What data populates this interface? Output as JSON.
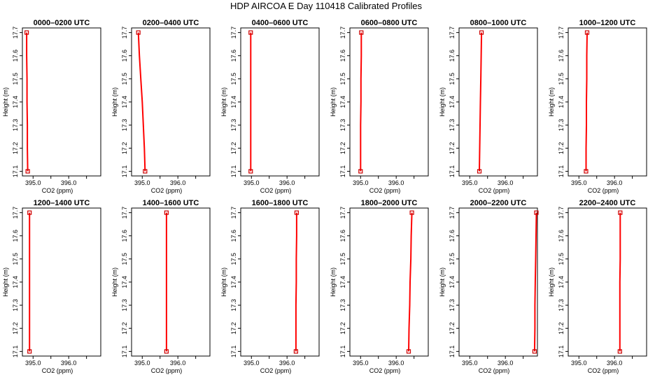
{
  "figure": {
    "title": "HDP AIRCOA E  Day 110418  Calibrated Profiles"
  },
  "colors": {
    "series": "#ff0000",
    "marker": "#cc0000",
    "axis": "#000000"
  },
  "chart_data": [
    {
      "type": "line",
      "title": "0000–0200 UTC",
      "xlabel": "CO2 (ppm)",
      "ylabel": "Height (m)",
      "xlim": [
        394.7,
        396.9
      ],
      "ylim": [
        17.08,
        17.72
      ],
      "xticks": [
        "395.0",
        "396.0"
      ],
      "yticks": [
        "17.1",
        "17.2",
        "17.3",
        "17.4",
        "17.5",
        "17.6",
        "17.7"
      ],
      "grid": false,
      "series": [
        {
          "x": [
            394.85,
            394.84,
            394.84,
            394.83,
            394.83,
            394.82,
            394.82
          ],
          "y": [
            17.1,
            17.2,
            17.3,
            17.4,
            17.5,
            17.6,
            17.7
          ],
          "markers": [
            {
              "x": 394.85,
              "y": 17.1
            },
            {
              "x": 394.82,
              "y": 17.7
            }
          ]
        }
      ]
    },
    {
      "type": "line",
      "title": "0200–0400 UTC",
      "xlabel": "CO2 (ppm)",
      "ylabel": "Height (m)",
      "xlim": [
        394.7,
        396.9
      ],
      "ylim": [
        17.08,
        17.72
      ],
      "xticks": [
        "395.0",
        "396.0"
      ],
      "yticks": [
        "17.1",
        "17.2",
        "17.3",
        "17.4",
        "17.5",
        "17.6",
        "17.7"
      ],
      "grid": false,
      "series": [
        {
          "x": [
            395.08,
            395.06,
            395.03,
            395.0,
            394.96,
            394.92,
            394.89
          ],
          "y": [
            17.1,
            17.2,
            17.3,
            17.4,
            17.5,
            17.6,
            17.7
          ],
          "markers": [
            {
              "x": 395.08,
              "y": 17.1
            },
            {
              "x": 394.89,
              "y": 17.7
            }
          ]
        }
      ]
    },
    {
      "type": "line",
      "title": "0400–0600 UTC",
      "xlabel": "CO2 (ppm)",
      "ylabel": "Height (m)",
      "xlim": [
        394.7,
        396.9
      ],
      "ylim": [
        17.08,
        17.72
      ],
      "xticks": [
        "395.0",
        "396.0"
      ],
      "yticks": [
        "17.1",
        "17.2",
        "17.3",
        "17.4",
        "17.5",
        "17.6",
        "17.7"
      ],
      "grid": false,
      "series": [
        {
          "x": [
            394.98,
            394.98,
            394.98,
            394.98,
            394.98,
            394.98,
            394.98
          ],
          "y": [
            17.1,
            17.2,
            17.3,
            17.4,
            17.5,
            17.6,
            17.7
          ],
          "markers": [
            {
              "x": 394.98,
              "y": 17.1
            },
            {
              "x": 394.98,
              "y": 17.7
            }
          ]
        }
      ]
    },
    {
      "type": "line",
      "title": "0600–0800 UTC",
      "xlabel": "CO2 (ppm)",
      "ylabel": "Height (m)",
      "xlim": [
        394.7,
        396.9
      ],
      "ylim": [
        17.08,
        17.72
      ],
      "xticks": [
        "395.0",
        "396.0"
      ],
      "yticks": [
        "17.1",
        "17.2",
        "17.3",
        "17.4",
        "17.5",
        "17.6",
        "17.7"
      ],
      "grid": false,
      "series": [
        {
          "x": [
            395.0,
            395.0,
            395.0,
            395.01,
            395.01,
            395.02,
            395.02
          ],
          "y": [
            17.1,
            17.2,
            17.3,
            17.4,
            17.5,
            17.6,
            17.7
          ],
          "markers": [
            {
              "x": 395.0,
              "y": 17.1
            },
            {
              "x": 395.02,
              "y": 17.7
            }
          ]
        }
      ]
    },
    {
      "type": "line",
      "title": "0800–1000 UTC",
      "xlabel": "CO2 (ppm)",
      "ylabel": "Height (m)",
      "xlim": [
        394.7,
        396.9
      ],
      "ylim": [
        17.08,
        17.72
      ],
      "xticks": [
        "395.0",
        "396.0"
      ],
      "yticks": [
        "17.1",
        "17.2",
        "17.3",
        "17.4",
        "17.5",
        "17.6",
        "17.7"
      ],
      "grid": false,
      "series": [
        {
          "x": [
            395.27,
            395.28,
            395.29,
            395.3,
            395.31,
            395.32,
            395.33
          ],
          "y": [
            17.1,
            17.2,
            17.3,
            17.4,
            17.5,
            17.6,
            17.7
          ],
          "markers": [
            {
              "x": 395.27,
              "y": 17.1
            },
            {
              "x": 395.33,
              "y": 17.7
            }
          ]
        }
      ]
    },
    {
      "type": "line",
      "title": "1000–1200 UTC",
      "xlabel": "CO2 (ppm)",
      "ylabel": "Height (m)",
      "xlim": [
        394.7,
        396.9
      ],
      "ylim": [
        17.08,
        17.72
      ],
      "xticks": [
        "395.0",
        "396.0"
      ],
      "yticks": [
        "17.1",
        "17.2",
        "17.3",
        "17.4",
        "17.5",
        "17.6",
        "17.7"
      ],
      "grid": false,
      "series": [
        {
          "x": [
            395.2,
            395.2,
            395.21,
            395.21,
            395.22,
            395.22,
            395.23
          ],
          "y": [
            17.1,
            17.2,
            17.3,
            17.4,
            17.5,
            17.6,
            17.7
          ],
          "markers": [
            {
              "x": 395.2,
              "y": 17.1
            },
            {
              "x": 395.23,
              "y": 17.7
            }
          ]
        }
      ]
    },
    {
      "type": "line",
      "title": "1200–1400 UTC",
      "xlabel": "CO2 (ppm)",
      "ylabel": "Height (m)",
      "xlim": [
        394.7,
        396.9
      ],
      "ylim": [
        17.08,
        17.72
      ],
      "xticks": [
        "395.0",
        "396.0"
      ],
      "yticks": [
        "17.1",
        "17.2",
        "17.3",
        "17.4",
        "17.5",
        "17.6",
        "17.7"
      ],
      "grid": false,
      "series": [
        {
          "x": [
            394.9,
            394.9,
            394.9,
            394.9,
            394.9,
            394.9,
            394.9
          ],
          "y": [
            17.1,
            17.2,
            17.3,
            17.4,
            17.5,
            17.6,
            17.7
          ],
          "markers": [
            {
              "x": 394.9,
              "y": 17.1
            },
            {
              "x": 394.9,
              "y": 17.7
            }
          ]
        }
      ]
    },
    {
      "type": "line",
      "title": "1400–1600 UTC",
      "xlabel": "CO2 (ppm)",
      "ylabel": "Height (m)",
      "xlim": [
        394.7,
        396.9
      ],
      "ylim": [
        17.08,
        17.72
      ],
      "xticks": [
        "395.0",
        "396.0"
      ],
      "yticks": [
        "17.1",
        "17.2",
        "17.3",
        "17.4",
        "17.5",
        "17.6",
        "17.7"
      ],
      "grid": false,
      "series": [
        {
          "x": [
            395.68,
            395.68,
            395.68,
            395.68,
            395.68,
            395.68,
            395.68
          ],
          "y": [
            17.1,
            17.2,
            17.3,
            17.4,
            17.5,
            17.6,
            17.7
          ],
          "markers": [
            {
              "x": 395.68,
              "y": 17.1
            },
            {
              "x": 395.68,
              "y": 17.7
            }
          ]
        }
      ]
    },
    {
      "type": "line",
      "title": "1600–1800 UTC",
      "xlabel": "CO2 (ppm)",
      "ylabel": "Height (m)",
      "xlim": [
        394.7,
        396.9
      ],
      "ylim": [
        17.08,
        17.72
      ],
      "xticks": [
        "395.0",
        "396.0"
      ],
      "yticks": [
        "17.1",
        "17.2",
        "17.3",
        "17.4",
        "17.5",
        "17.6",
        "17.7"
      ],
      "grid": false,
      "series": [
        {
          "x": [
            396.25,
            396.25,
            396.25,
            396.26,
            396.26,
            396.27,
            396.27
          ],
          "y": [
            17.1,
            17.2,
            17.3,
            17.4,
            17.5,
            17.6,
            17.7
          ],
          "markers": [
            {
              "x": 396.25,
              "y": 17.1
            },
            {
              "x": 396.27,
              "y": 17.7
            }
          ]
        }
      ]
    },
    {
      "type": "line",
      "title": "1800–2000 UTC",
      "xlabel": "CO2 (ppm)",
      "ylabel": "Height (m)",
      "xlim": [
        394.7,
        396.9
      ],
      "ylim": [
        17.08,
        17.72
      ],
      "xticks": [
        "395.0",
        "396.0"
      ],
      "yticks": [
        "17.1",
        "17.2",
        "17.3",
        "17.4",
        "17.5",
        "17.6",
        "17.7"
      ],
      "grid": false,
      "series": [
        {
          "x": [
            396.35,
            396.36,
            396.38,
            396.39,
            396.41,
            396.42,
            396.44
          ],
          "y": [
            17.1,
            17.2,
            17.3,
            17.4,
            17.5,
            17.6,
            17.7
          ],
          "markers": [
            {
              "x": 396.35,
              "y": 17.1
            },
            {
              "x": 396.44,
              "y": 17.7
            }
          ]
        }
      ]
    },
    {
      "type": "line",
      "title": "2000–2200 UTC",
      "xlabel": "CO2 (ppm)",
      "ylabel": "Height (m)",
      "xlim": [
        394.7,
        396.9
      ],
      "ylim": [
        17.08,
        17.72
      ],
      "xticks": [
        "395.0",
        "396.0"
      ],
      "yticks": [
        "17.1",
        "17.2",
        "17.3",
        "17.4",
        "17.5",
        "17.6",
        "17.7"
      ],
      "grid": false,
      "series": [
        {
          "x": [
            396.82,
            396.83,
            396.83,
            396.84,
            396.85,
            396.86,
            396.87
          ],
          "y": [
            17.1,
            17.2,
            17.3,
            17.4,
            17.5,
            17.6,
            17.7
          ],
          "markers": [
            {
              "x": 396.82,
              "y": 17.1
            },
            {
              "x": 396.87,
              "y": 17.7
            }
          ]
        }
      ]
    },
    {
      "type": "line",
      "title": "2200–2400 UTC",
      "xlabel": "CO2 (ppm)",
      "ylabel": "Height (m)",
      "xlim": [
        394.7,
        396.9
      ],
      "ylim": [
        17.08,
        17.72
      ],
      "xticks": [
        "395.0",
        "396.0"
      ],
      "yticks": [
        "17.1",
        "17.2",
        "17.3",
        "17.4",
        "17.5",
        "17.6",
        "17.7"
      ],
      "grid": false,
      "series": [
        {
          "x": [
            396.15,
            396.15,
            396.15,
            396.15,
            396.16,
            396.16,
            396.16
          ],
          "y": [
            17.1,
            17.2,
            17.3,
            17.4,
            17.5,
            17.6,
            17.7
          ],
          "markers": [
            {
              "x": 396.15,
              "y": 17.1
            },
            {
              "x": 396.16,
              "y": 17.7
            }
          ]
        }
      ]
    }
  ]
}
